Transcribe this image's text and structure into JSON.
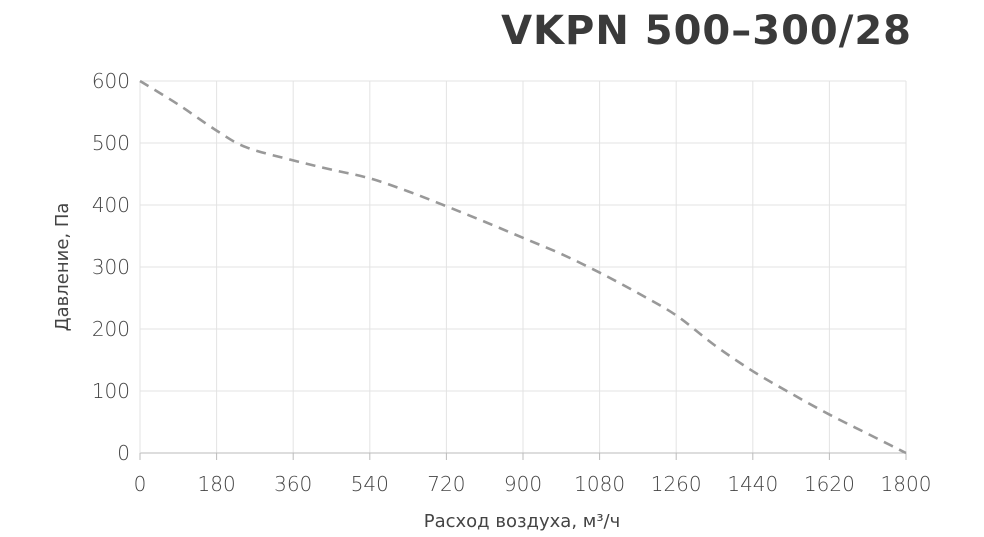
{
  "chart_data": {
    "type": "line",
    "title": "VKPN 500–300/28",
    "xlabel": "Расход воздуха, м³/ч",
    "ylabel": "Давление, Па",
    "xlim": [
      0,
      1800
    ],
    "ylim": [
      0,
      600
    ],
    "xticks": [
      "0",
      "180",
      "360",
      "540",
      "720",
      "900",
      "1080",
      "1260",
      "1440",
      "1620",
      "1800"
    ],
    "yticks": [
      "0",
      "100",
      "200",
      "300",
      "400",
      "500",
      "600"
    ],
    "grid": true,
    "line_color": "#999999",
    "line_style": "dashed",
    "series": [
      {
        "x": [
          0,
          90,
          180,
          250,
          360,
          450,
          540,
          630,
          720,
          810,
          900,
          990,
          1080,
          1170,
          1260,
          1350,
          1440,
          1530,
          1620,
          1710,
          1800
        ],
        "values": [
          600,
          562,
          520,
          493,
          472,
          457,
          443,
          422,
          398,
          373,
          347,
          321,
          291,
          258,
          222,
          174,
          132,
          96,
          62,
          31,
          0
        ]
      }
    ]
  }
}
